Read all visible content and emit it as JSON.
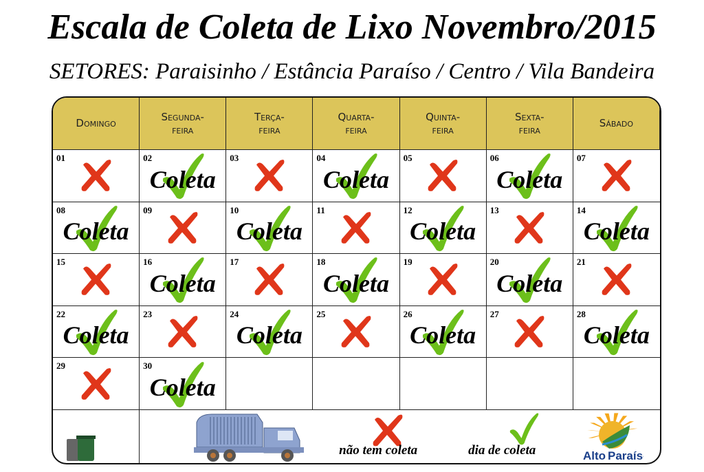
{
  "title": "Escala de Coleta de Lixo Novembro/2015",
  "subtitle": "SETORES: Paraisinho / Estância Paraíso / Centro / Vila Bandeira",
  "weekdays": [
    "Domingo",
    "Segunda-\nfeira",
    "Terça-\nfeira",
    "Quarta-\nfeira",
    "Quinta-\nfeira",
    "Sexta-\nfeira",
    "Sábado"
  ],
  "collect_label": "Coleta",
  "days": [
    {
      "n": "01",
      "collect": false
    },
    {
      "n": "02",
      "collect": true
    },
    {
      "n": "03",
      "collect": false
    },
    {
      "n": "04",
      "collect": true
    },
    {
      "n": "05",
      "collect": false
    },
    {
      "n": "06",
      "collect": true
    },
    {
      "n": "07",
      "collect": false
    },
    {
      "n": "08",
      "collect": true
    },
    {
      "n": "09",
      "collect": false
    },
    {
      "n": "10",
      "collect": true
    },
    {
      "n": "11",
      "collect": false
    },
    {
      "n": "12",
      "collect": true
    },
    {
      "n": "13",
      "collect": false
    },
    {
      "n": "14",
      "collect": true
    },
    {
      "n": "15",
      "collect": false
    },
    {
      "n": "16",
      "collect": true
    },
    {
      "n": "17",
      "collect": false
    },
    {
      "n": "18",
      "collect": true
    },
    {
      "n": "19",
      "collect": false
    },
    {
      "n": "20",
      "collect": true
    },
    {
      "n": "21",
      "collect": false
    },
    {
      "n": "22",
      "collect": true
    },
    {
      "n": "23",
      "collect": false
    },
    {
      "n": "24",
      "collect": true
    },
    {
      "n": "25",
      "collect": false
    },
    {
      "n": "26",
      "collect": true
    },
    {
      "n": "27",
      "collect": false
    },
    {
      "n": "28",
      "collect": true
    },
    {
      "n": "29",
      "collect": false
    },
    {
      "n": "30",
      "collect": true
    }
  ],
  "legend": {
    "no_collect": "não tem coleta",
    "collect": "dia de coleta"
  },
  "logo_text": "Alto Paraíso",
  "colors": {
    "header": "#dcc55a",
    "check": "#6cbf1a",
    "cross": "#e0361a"
  }
}
